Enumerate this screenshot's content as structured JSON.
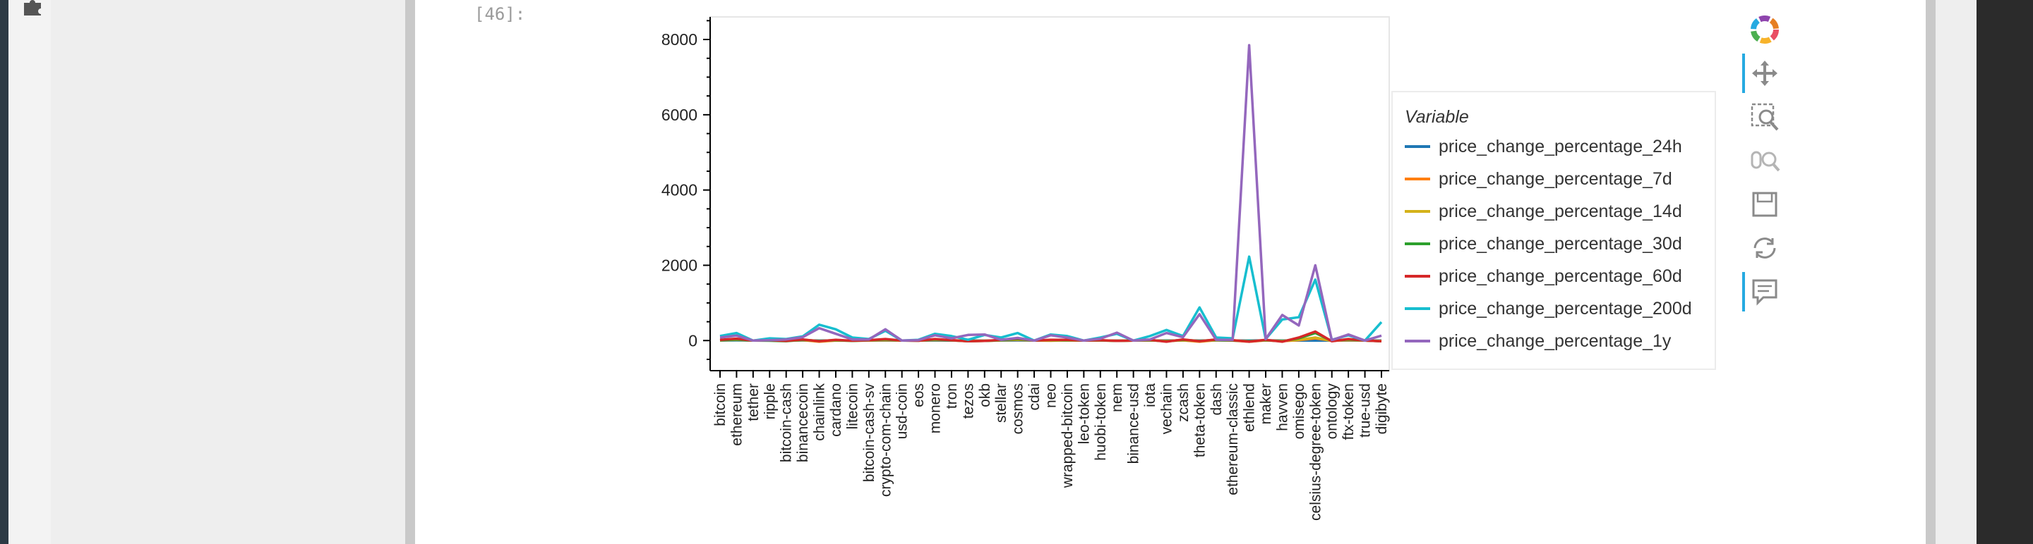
{
  "cell": {
    "prompt": "[46]:"
  },
  "toolbar": {
    "tools": [
      {
        "name": "bokeh-logo",
        "active": false
      },
      {
        "name": "pan",
        "active": true
      },
      {
        "name": "box-zoom",
        "active": false
      },
      {
        "name": "wheel-zoom",
        "active": false
      },
      {
        "name": "save",
        "active": false
      },
      {
        "name": "reset",
        "active": false
      },
      {
        "name": "hover",
        "active": true
      }
    ]
  },
  "chart_data": {
    "type": "line",
    "title": "",
    "xlabel": "",
    "ylabel": "",
    "ylim": [
      -800,
      8600
    ],
    "yticks": [
      0,
      2000,
      4000,
      6000,
      8000
    ],
    "grid": false,
    "legend_title": "Variable",
    "legend_position": "right",
    "categories": [
      "bitcoin",
      "ethereum",
      "tether",
      "ripple",
      "bitcoin-cash",
      "binancecoin",
      "chainlink",
      "cardano",
      "litecoin",
      "bitcoin-cash-sv",
      "crypto-com-chain",
      "usd-coin",
      "eos",
      "monero",
      "tron",
      "tezos",
      "okb",
      "stellar",
      "cosmos",
      "cdai",
      "neo",
      "wrapped-bitcoin",
      "leo-token",
      "huobi-token",
      "nem",
      "binance-usd",
      "iota",
      "vechain",
      "zcash",
      "theta-token",
      "dash",
      "ethereum-classic",
      "ethlend",
      "maker",
      "havven",
      "omisego",
      "celsius-degree-token",
      "ontology",
      "ftx-token",
      "true-usd",
      "digibyte"
    ],
    "series": [
      {
        "name": "price_change_percentage_24h",
        "color": "#1f77b4",
        "values": [
          1,
          5,
          0,
          -1,
          2,
          3,
          -2,
          2,
          0,
          1,
          1,
          0,
          0,
          2,
          0,
          -1,
          -2,
          1,
          3,
          0,
          2,
          0,
          0,
          1,
          -1,
          0,
          1,
          0,
          2,
          -3,
          2,
          -1,
          -2,
          5,
          1,
          1,
          -2,
          0,
          2,
          0,
          1
        ]
      },
      {
        "name": "price_change_percentage_7d",
        "color": "#ff7f0e",
        "values": [
          6,
          30,
          0,
          4,
          -10,
          10,
          -30,
          0,
          -5,
          2,
          10,
          0,
          -2,
          15,
          5,
          -20,
          -10,
          5,
          20,
          0,
          -5,
          5,
          0,
          2,
          -5,
          0,
          5,
          -10,
          5,
          -30,
          10,
          0,
          -30,
          5,
          -15,
          10,
          60,
          -5,
          10,
          0,
          -20
        ]
      },
      {
        "name": "price_change_percentage_14d",
        "color": "#d4b21a",
        "values": [
          5,
          20,
          0,
          5,
          -5,
          15,
          -20,
          5,
          -5,
          5,
          20,
          0,
          0,
          20,
          10,
          -10,
          -5,
          5,
          30,
          0,
          10,
          5,
          0,
          5,
          -10,
          0,
          10,
          -20,
          10,
          -20,
          10,
          5,
          -20,
          5,
          -10,
          20,
          80,
          -10,
          20,
          0,
          -10
        ]
      },
      {
        "name": "price_change_percentage_30d",
        "color": "#2ca02c",
        "values": [
          10,
          30,
          0,
          -5,
          -15,
          20,
          -10,
          10,
          -10,
          5,
          30,
          0,
          -5,
          30,
          5,
          -15,
          -10,
          10,
          40,
          0,
          15,
          10,
          0,
          5,
          -10,
          0,
          10,
          -20,
          20,
          -10,
          20,
          0,
          -20,
          10,
          -20,
          60,
          200,
          -10,
          30,
          0,
          -20
        ]
      },
      {
        "name": "price_change_percentage_60d",
        "color": "#d62728",
        "values": [
          20,
          50,
          0,
          10,
          -10,
          30,
          -20,
          20,
          -5,
          10,
          40,
          0,
          -5,
          40,
          10,
          -20,
          -10,
          20,
          60,
          0,
          20,
          20,
          0,
          10,
          -10,
          0,
          20,
          -30,
          30,
          -20,
          30,
          10,
          -30,
          20,
          -30,
          80,
          240,
          -20,
          40,
          0,
          -20
        ]
      },
      {
        "name": "price_change_percentage_200d",
        "color": "#17becf",
        "values": [
          120,
          200,
          0,
          60,
          40,
          110,
          420,
          300,
          80,
          40,
          260,
          0,
          20,
          180,
          120,
          20,
          150,
          80,
          200,
          0,
          160,
          120,
          0,
          80,
          180,
          0,
          120,
          280,
          120,
          880,
          80,
          60,
          2230,
          40,
          560,
          620,
          1620,
          20,
          140,
          0,
          490
        ]
      },
      {
        "name": "price_change_percentage_1y",
        "color": "#9467bd",
        "values": [
          80,
          130,
          0,
          10,
          30,
          90,
          330,
          180,
          30,
          30,
          300,
          0,
          10,
          140,
          60,
          150,
          160,
          20,
          70,
          0,
          140,
          80,
          0,
          50,
          210,
          0,
          30,
          200,
          90,
          700,
          20,
          20,
          7850,
          40,
          680,
          400,
          2000,
          10,
          160,
          0,
          130
        ]
      }
    ]
  }
}
